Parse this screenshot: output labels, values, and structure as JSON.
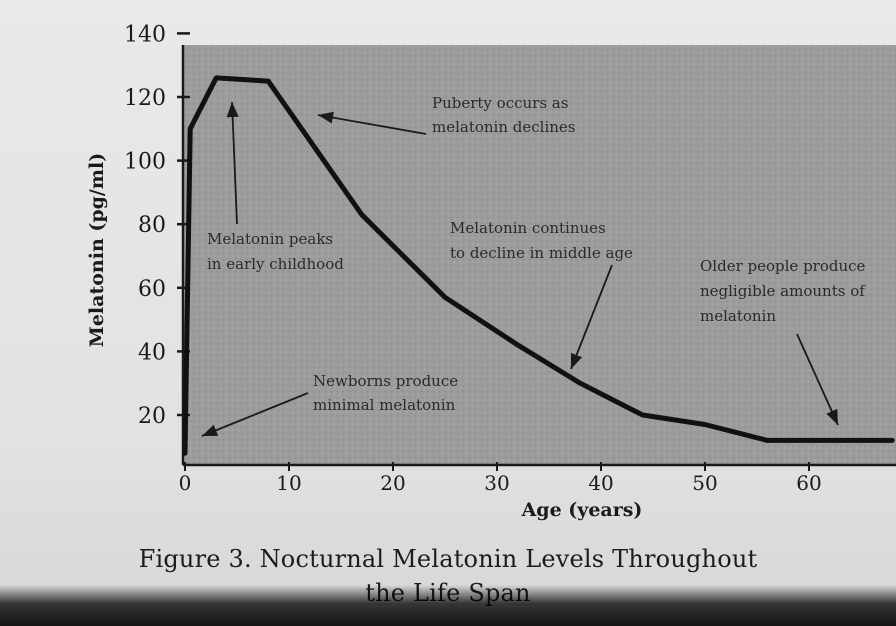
{
  "chart_data": {
    "type": "line",
    "ylabel": "Melatonin (pg/ml)",
    "xlabel": "Age (years)",
    "x_ticks": [
      0,
      10,
      20,
      30,
      40,
      50,
      60
    ],
    "y_ticks": [
      20,
      40,
      60,
      80,
      100,
      120,
      140
    ],
    "xlim": [
      0,
      68
    ],
    "ylim": [
      5,
      140
    ],
    "grid": false,
    "series": [
      {
        "x": [
          0,
          0.5,
          3,
          8,
          17,
          25,
          32,
          38,
          44,
          50,
          56,
          62,
          68
        ],
        "y": [
          8,
          110,
          126,
          125,
          83,
          57,
          42,
          30,
          20,
          17,
          12,
          12,
          12
        ]
      }
    ],
    "annotations": [
      {
        "text_lines": [
          "Puberty occurs as",
          "melatonin declines"
        ]
      },
      {
        "text_lines": [
          "Melatonin peaks",
          "in early childhood"
        ]
      },
      {
        "text_lines": [
          "Melatonin continues",
          "to decline in middle age"
        ]
      },
      {
        "text_lines": [
          "Older people produce",
          "negligible amounts of",
          "melatonin"
        ]
      },
      {
        "text_lines": [
          "Newborns produce",
          "minimal melatonin"
        ]
      }
    ]
  },
  "caption": {
    "line1": "Figure 3.  Nocturnal Melatonin Levels Throughout",
    "line2": "the Life Span"
  },
  "colors": {
    "plot_fill": "#9a9a9a",
    "line": "#111111",
    "text": "#1a1a1a"
  }
}
